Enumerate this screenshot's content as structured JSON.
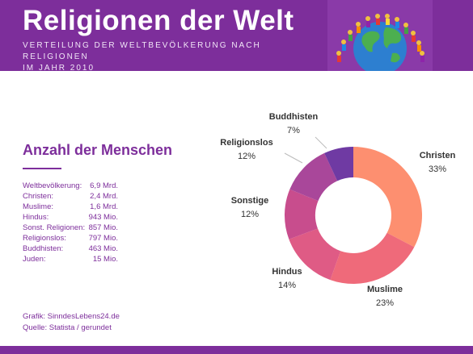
{
  "header": {
    "title": "Religionen der Welt",
    "subtitle_line1": "VERTEILUNG DER WELTBEVÖLKERUNG NACH RELIGIONEN",
    "subtitle_line2": "IM JAHR 2010"
  },
  "panel": {
    "heading": "Anzahl der Menschen",
    "stats": [
      {
        "label": "Weltbevölkerung:",
        "value": "6,9 Mrd."
      },
      {
        "label": "Christen:",
        "value": "2,4 Mrd."
      },
      {
        "label": "Muslime:",
        "value": "1,6 Mrd."
      },
      {
        "label": "Hindus:",
        "value": "943 Mio."
      },
      {
        "label": "Sonst. Religionen:",
        "value": "857 Mio."
      },
      {
        "label": "Religionslos:",
        "value": "797 Mio."
      },
      {
        "label": "Buddhisten:",
        "value": "463 Mio."
      },
      {
        "label": "Juden:",
        "value": "15 Mio."
      }
    ]
  },
  "footer": {
    "credit": "Grafik: SinndesLebens24.de",
    "source": "Quelle: Statista / gerundet"
  },
  "colors": {
    "brand": "#7d2e9b"
  },
  "icons": {
    "header_image": "globe-icon"
  },
  "chart_data": {
    "type": "pie",
    "donut": true,
    "unit": "%",
    "slices": [
      {
        "name": "Christen",
        "value": 33,
        "label": "33%",
        "color": "#fd8f70"
      },
      {
        "name": "Muslime",
        "value": 23,
        "label": "23%",
        "color": "#ef6a7a"
      },
      {
        "name": "Hindus",
        "value": 14,
        "label": "14%",
        "color": "#df5b85"
      },
      {
        "name": "Sonstige",
        "value": 12,
        "label": "12%",
        "color": "#c84d8d"
      },
      {
        "name": "Religionslos",
        "value": 12,
        "label": "12%",
        "color": "#a9479a"
      },
      {
        "name": "Buddhisten",
        "value": 7,
        "label": "7%",
        "color": "#6f3aa3"
      }
    ]
  }
}
